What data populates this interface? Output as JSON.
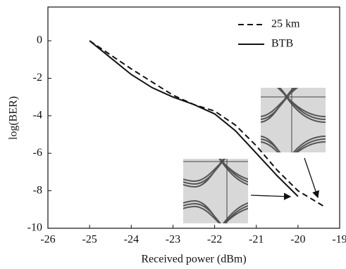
{
  "chart_data": {
    "type": "line",
    "xlabel": "Received power (dBm)",
    "ylabel": "log(BER)",
    "x": [
      -25,
      -24.5,
      -24,
      -23.5,
      -23,
      -22.5,
      -22,
      -21.5,
      -21,
      -20.5,
      -20,
      -19.7,
      -19.4
    ],
    "series": [
      {
        "name": "25 km",
        "color": "#111111",
        "dash": true,
        "values": [
          0,
          -0.75,
          -1.5,
          -2.2,
          -2.9,
          -3.4,
          -3.75,
          -4.5,
          -5.6,
          -6.9,
          -8.0,
          -8.4,
          -8.8
        ]
      },
      {
        "name": "BTB",
        "color": "#111111",
        "dash": false,
        "values": [
          0,
          -0.9,
          -1.8,
          -2.5,
          -3.0,
          -3.4,
          -3.9,
          -4.8,
          -6.0,
          -7.2,
          -8.3,
          null,
          null
        ]
      }
    ],
    "xlim": [
      -26,
      -19
    ],
    "xticks": [
      -26,
      -25,
      -24,
      -23,
      -22,
      -21,
      -20,
      -19
    ],
    "ylim": [
      -10,
      1.8
    ],
    "yticks": [
      -10,
      -8,
      -6,
      -4,
      -2,
      0
    ],
    "legend": "upper right"
  }
}
